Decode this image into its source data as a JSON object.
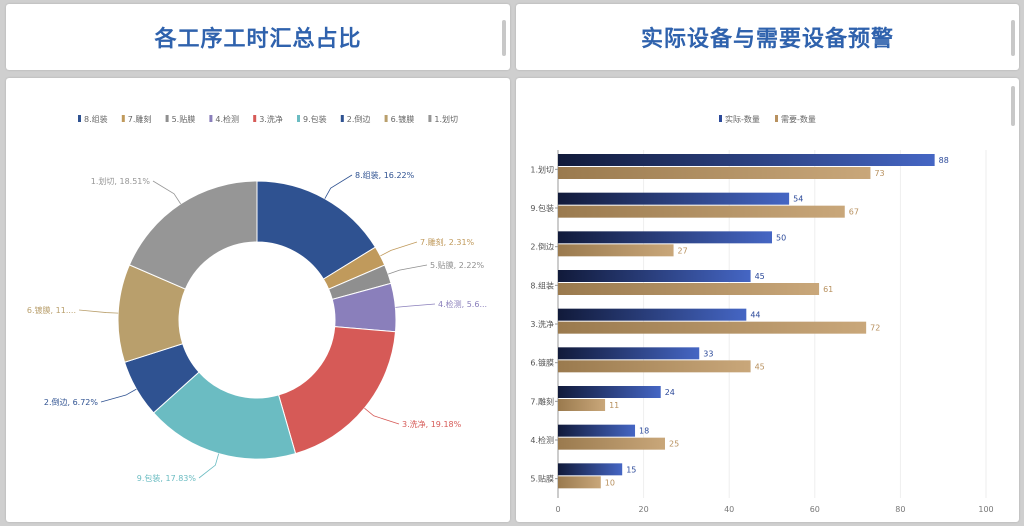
{
  "left_header": {
    "title": "各工序工时汇总占比"
  },
  "right_header": {
    "title": "实际设备与需要设备预警"
  },
  "chart_data": [
    {
      "type": "pie",
      "donut": true,
      "legend_position": "top",
      "slices": [
        {
          "name": "8.组装",
          "value": 16.22,
          "label": "8.组装, 16.22%",
          "color": "#2f5291"
        },
        {
          "name": "7.雕刻",
          "value": 2.31,
          "label": "7.雕刻, 2.31%",
          "color": "#c09a5c"
        },
        {
          "name": "5.贴膜",
          "value": 2.22,
          "label": "5.贴膜, 2.22%",
          "color": "#8f8f8f"
        },
        {
          "name": "4.检测",
          "value": 5.6,
          "label": "4.检测, 5.6...",
          "color": "#8a7fbb"
        },
        {
          "name": "3.洗净",
          "value": 19.18,
          "label": "3.洗净, 19.18%",
          "color": "#d65a57"
        },
        {
          "name": "9.包装",
          "value": 17.83,
          "label": "9.包装, 17.83%",
          "color": "#6bbcc2"
        },
        {
          "name": "2.倒边",
          "value": 6.72,
          "label": "2.倒边, 6.72%",
          "color": "#2f5291"
        },
        {
          "name": "6.镀膜",
          "value": 11.41,
          "label": "6.镀膜, 11....",
          "color": "#b99f6c"
        },
        {
          "name": "1.划切",
          "value": 18.51,
          "label": "1.划切, 18.51%",
          "color": "#969696"
        }
      ]
    },
    {
      "type": "bar",
      "orientation": "horizontal",
      "legend_position": "top",
      "categories": [
        "1.划切",
        "9.包装",
        "2.倒边",
        "8.组装",
        "3.洗净",
        "6.镀膜",
        "7.雕刻",
        "4.检测",
        "5.贴膜"
      ],
      "series": [
        {
          "name": "实际-数量",
          "values": [
            88,
            54,
            50,
            45,
            44,
            33,
            24,
            18,
            15
          ],
          "color": "#2c4a9a"
        },
        {
          "name": "需要-数量",
          "values": [
            73,
            67,
            27,
            61,
            72,
            45,
            11,
            25,
            10
          ],
          "color": "#b8915f"
        }
      ],
      "xlim": [
        0,
        100
      ],
      "xticks": [
        "0",
        "20",
        "40",
        "60",
        "80",
        "100"
      ],
      "grid": true
    }
  ]
}
